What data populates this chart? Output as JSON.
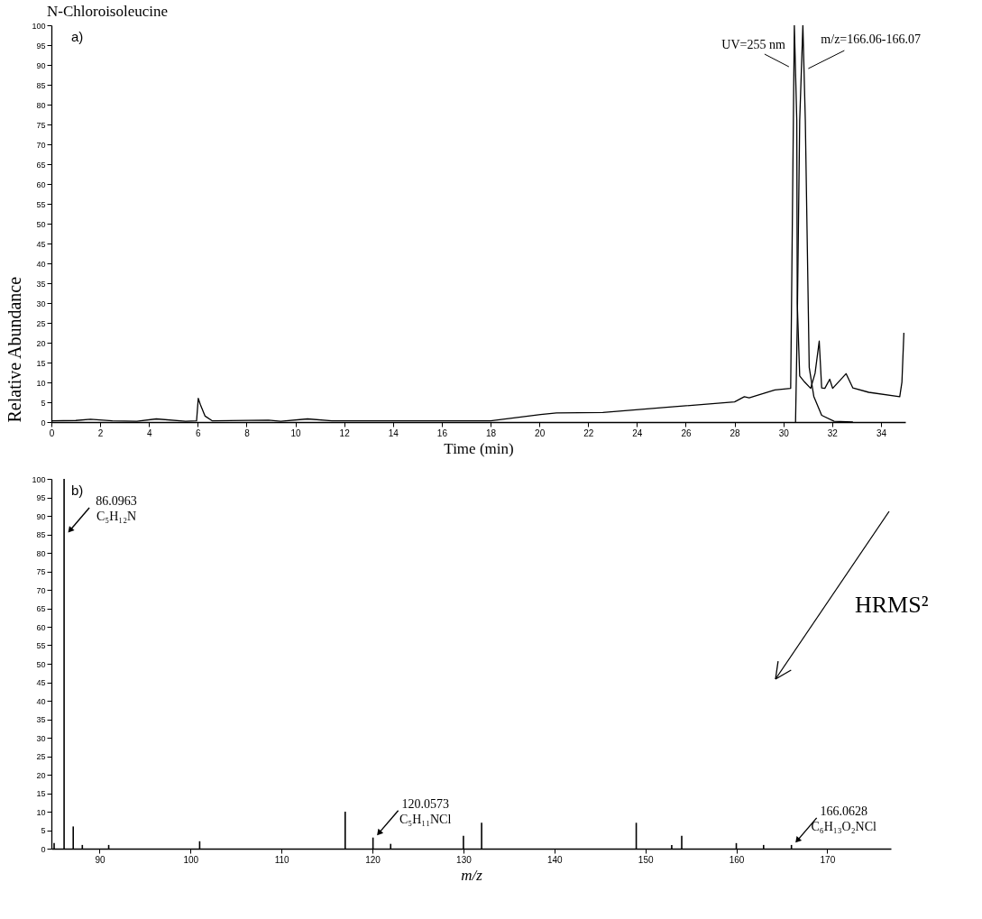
{
  "chart_data": [
    {
      "type": "line",
      "title": "N-Chloroisoleucine",
      "xlabel": "Time (min)",
      "ylabel": "Relative Abundance",
      "xlim": [
        0,
        35
      ],
      "ylim": [
        0,
        100
      ],
      "xticks": [
        0,
        2,
        4,
        6,
        8,
        10,
        12,
        14,
        16,
        18,
        20,
        22,
        24,
        26,
        28,
        30,
        32,
        34
      ],
      "yticks": [
        0,
        5,
        10,
        15,
        20,
        25,
        30,
        35,
        40,
        45,
        50,
        55,
        60,
        65,
        70,
        75,
        80,
        85,
        90,
        95,
        100
      ],
      "annotations": [
        "a)"
      ],
      "series": [
        {
          "name": "UV=255 nm",
          "color": "#000000",
          "x": [
            0,
            1.0,
            1.6,
            2.5,
            3.5,
            4.3,
            5.5,
            5.95,
            6.02,
            6.1,
            6.3,
            6.6,
            8.9,
            9.4,
            10.5,
            11.5,
            14,
            17.5,
            18,
            20.05,
            20.7,
            22.6,
            25.2,
            28,
            28.4,
            28.6,
            29.65,
            30.3,
            30.35,
            30.45,
            30.55,
            30.57,
            30.67,
            30.87,
            31.12,
            31.3,
            31.47,
            31.57,
            31.7,
            31.9,
            32.02,
            32.57,
            32.85,
            33.5,
            34.77,
            34.86,
            34.94
          ],
          "values": [
            0.3,
            0.4,
            0.7,
            0.3,
            0.2,
            0.8,
            0.2,
            0.3,
            6,
            4.5,
            1.5,
            0.3,
            0.5,
            0.2,
            0.8,
            0.3,
            0.3,
            0.3,
            0.3,
            1.9,
            2.3,
            2.4,
            3.7,
            5.1,
            6.4,
            6.1,
            8.1,
            8.5,
            39,
            100,
            76,
            30,
            11.6,
            10.1,
            8.5,
            12.3,
            20.4,
            8.6,
            8.5,
            10.8,
            8.5,
            12.2,
            8.6,
            7.5,
            6.4,
            10.1,
            22.5
          ]
        },
        {
          "name": "m/z=166.06-166.07",
          "color": "#000000",
          "x": [
            30.5,
            30.57,
            30.67,
            30.8,
            30.9,
            31.06,
            31.25,
            31.57,
            32.08,
            32.85
          ],
          "values": [
            0,
            25,
            76,
            100,
            76,
            13.8,
            6.4,
            1.7,
            0.2,
            0
          ]
        }
      ]
    },
    {
      "type": "bar",
      "xlabel": "m/z",
      "xlim": [
        84.7,
        177
      ],
      "ylim": [
        0,
        100
      ],
      "xticks": [
        90,
        100,
        110,
        120,
        130,
        140,
        150,
        160,
        170
      ],
      "yticks": [
        0,
        5,
        10,
        15,
        20,
        25,
        30,
        35,
        40,
        45,
        50,
        55,
        60,
        65,
        70,
        75,
        80,
        85,
        90,
        95,
        100
      ],
      "x": [
        85,
        86.0963,
        87.1,
        88.1,
        91,
        101,
        117,
        120.0573,
        122,
        130,
        132,
        149,
        152.9,
        154,
        160,
        163,
        166.0628
      ],
      "values": [
        1.5,
        100,
        6,
        1,
        1,
        2,
        10,
        3,
        1.3,
        3.5,
        7,
        7,
        1,
        3.5,
        1.5,
        1,
        1
      ],
      "color": "#000000",
      "annotations": [
        "b)",
        "HRMS²",
        {
          "text": "86.0963\nC₅H₁₂N",
          "x": 86.0963,
          "y": 100
        },
        {
          "text": "120.0573\nC₅H₁₁NCl",
          "x": 120.0573,
          "y": 3
        },
        {
          "text": "166.0628\nC₆H₁₃O₂NCl",
          "x": 166.0628,
          "y": 1
        }
      ]
    }
  ]
}
